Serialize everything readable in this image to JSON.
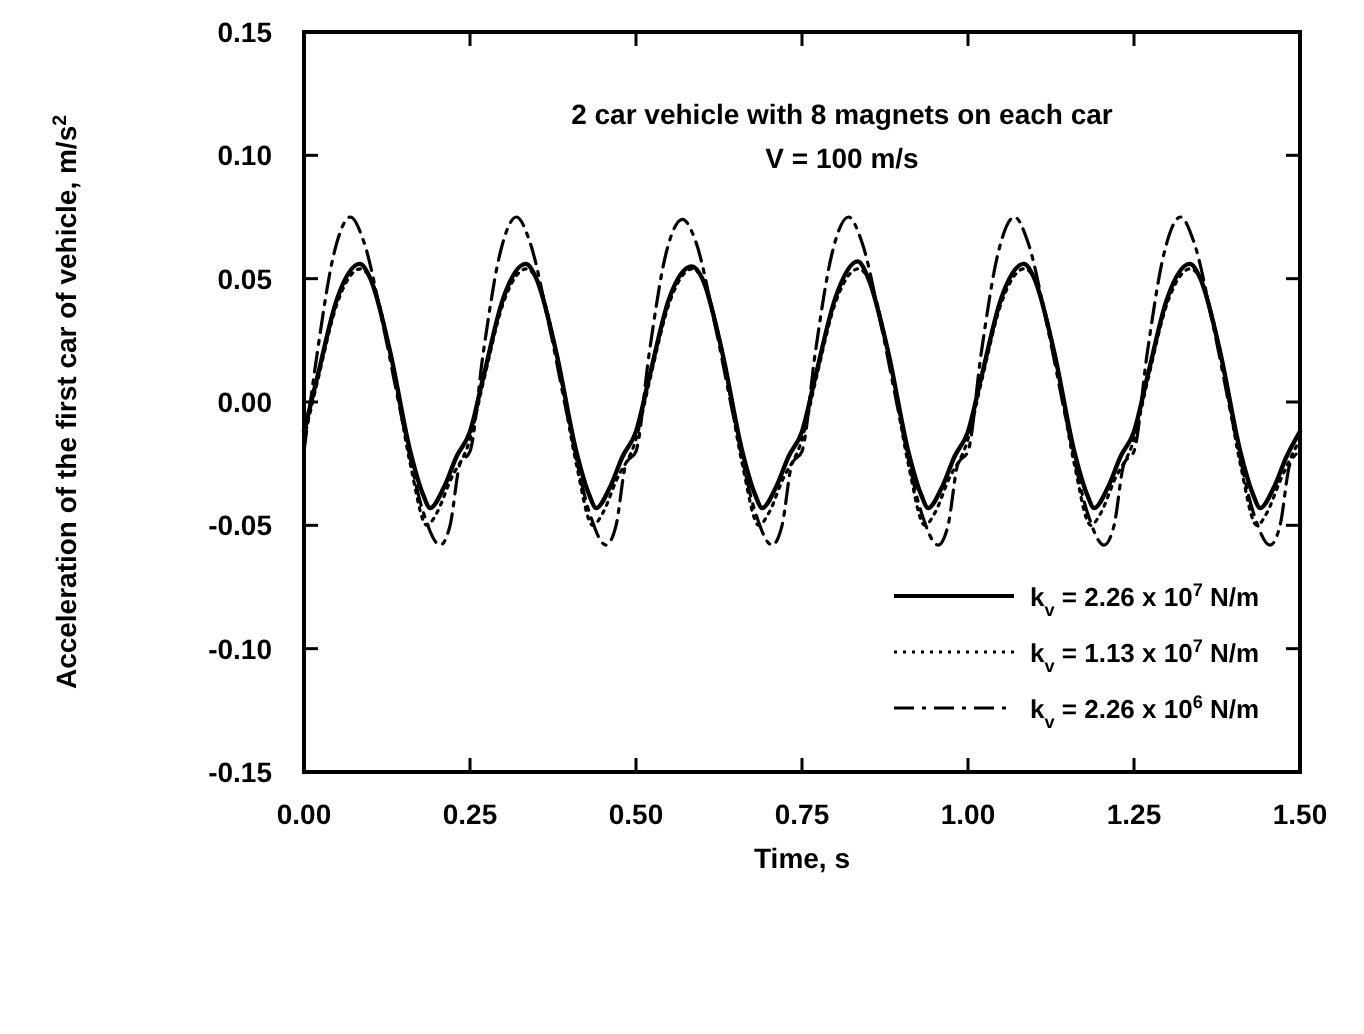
{
  "chart_data": {
    "type": "line",
    "xlabel": "Time, s",
    "ylabel": "Acceleration of the first  car of vehicle, m/s$^{2}$",
    "annotations": [
      "2 car vehicle with 8 magnets on each car",
      "V = 100 m/s"
    ],
    "xlim": [
      0,
      1.5
    ],
    "xticks": [
      {
        "value": 0,
        "label": "0.00"
      },
      {
        "value": 0.25,
        "label": "0.25"
      },
      {
        "value": 0.5,
        "label": "0.50"
      },
      {
        "value": 0.75,
        "label": "0.75"
      },
      {
        "value": 1,
        "label": "1.00"
      },
      {
        "value": 1.25,
        "label": "1.25"
      },
      {
        "value": 1.5,
        "label": "1.50"
      }
    ],
    "ylim": [
      -0.15,
      0.15
    ],
    "yticks": [
      {
        "value": -0.15,
        "label": "-0.15"
      },
      {
        "value": -0.1,
        "label": "-0.10"
      },
      {
        "value": -0.05,
        "label": "-0.05"
      },
      {
        "value": 0,
        "label": "0.00"
      },
      {
        "value": 0.05,
        "label": "0.05"
      },
      {
        "value": 0.1,
        "label": "0.10"
      },
      {
        "value": 0.15,
        "label": "0.15"
      }
    ],
    "grid": false,
    "legend": "bottom right",
    "series": [
      {
        "name": "k$_{v}$ = 2.26 x 10$^{7}$ N/m",
        "color": "#000000",
        "line_style": "solid",
        "x": [
          0,
          0.02,
          0.05,
          0.084,
          0.1,
          0.13,
          0.16,
          0.18,
          0.19,
          0.21,
          0.23,
          0.25,
          0.27,
          0.3,
          0.334,
          0.35,
          0.38,
          0.41,
          0.43,
          0.44,
          0.46,
          0.48,
          0.5,
          0.52,
          0.55,
          0.584,
          0.6,
          0.63,
          0.66,
          0.68,
          0.69,
          0.71,
          0.73,
          0.75,
          0.77,
          0.8,
          0.834,
          0.85,
          0.88,
          0.91,
          0.93,
          0.94,
          0.96,
          0.98,
          1,
          1.02,
          1.05,
          1.084,
          1.1,
          1.13,
          1.16,
          1.18,
          1.19,
          1.21,
          1.23,
          1.25,
          1.27,
          1.3,
          1.334,
          1.35,
          1.38,
          1.41,
          1.43,
          1.44,
          1.46,
          1.48,
          1.5
        ],
        "values": [
          -0.012,
          0.01,
          0.042,
          0.056,
          0.05,
          0.02,
          -0.02,
          -0.038,
          -0.043,
          -0.035,
          -0.022,
          -0.012,
          0.01,
          0.042,
          0.056,
          0.05,
          0.02,
          -0.02,
          -0.038,
          -0.043,
          -0.035,
          -0.022,
          -0.012,
          0.01,
          0.042,
          0.055,
          0.05,
          0.02,
          -0.02,
          -0.038,
          -0.043,
          -0.035,
          -0.022,
          -0.012,
          0.01,
          0.042,
          0.057,
          0.05,
          0.02,
          -0.02,
          -0.038,
          -0.043,
          -0.035,
          -0.022,
          -0.012,
          0.01,
          0.042,
          0.056,
          0.05,
          0.02,
          -0.02,
          -0.038,
          -0.043,
          -0.035,
          -0.022,
          -0.012,
          0.01,
          0.042,
          0.056,
          0.05,
          0.02,
          -0.02,
          -0.038,
          -0.043,
          -0.035,
          -0.022,
          -0.012
        ]
      },
      {
        "name": "k$_{v}$ = 1.13 x 10$^{7}$ N/m",
        "color": "#000000",
        "line_style": "dotted",
        "x": [
          0,
          0.02,
          0.05,
          0.085,
          0.1,
          0.13,
          0.16,
          0.185,
          0.2,
          0.22,
          0.25,
          0.27,
          0.3,
          0.335,
          0.35,
          0.38,
          0.41,
          0.435,
          0.45,
          0.47,
          0.5,
          0.52,
          0.55,
          0.585,
          0.6,
          0.63,
          0.66,
          0.685,
          0.7,
          0.72,
          0.75,
          0.77,
          0.8,
          0.835,
          0.85,
          0.88,
          0.91,
          0.935,
          0.95,
          0.97,
          1,
          1.02,
          1.05,
          1.085,
          1.1,
          1.13,
          1.16,
          1.185,
          1.2,
          1.22,
          1.25,
          1.27,
          1.3,
          1.335,
          1.35,
          1.38,
          1.41,
          1.435,
          1.45,
          1.47,
          1.5
        ],
        "values": [
          -0.015,
          0.008,
          0.04,
          0.054,
          0.05,
          0.02,
          -0.025,
          -0.05,
          -0.045,
          -0.032,
          -0.015,
          0.008,
          0.04,
          0.054,
          0.05,
          0.02,
          -0.025,
          -0.05,
          -0.045,
          -0.032,
          -0.015,
          0.008,
          0.04,
          0.054,
          0.05,
          0.02,
          -0.025,
          -0.05,
          -0.045,
          -0.032,
          -0.015,
          0.008,
          0.04,
          0.054,
          0.05,
          0.02,
          -0.025,
          -0.05,
          -0.045,
          -0.032,
          -0.015,
          0.008,
          0.04,
          0.054,
          0.05,
          0.02,
          -0.025,
          -0.05,
          -0.045,
          -0.032,
          -0.015,
          0.008,
          0.04,
          0.054,
          0.05,
          0.02,
          -0.025,
          -0.05,
          -0.045,
          -0.032,
          -0.015
        ]
      },
      {
        "name": "k$_{v}$ = 2.26 x 10$^{6}$ N/m",
        "color": "#000000",
        "line_style": "dashdot",
        "x": [
          0,
          0.02,
          0.045,
          0.07,
          0.09,
          0.12,
          0.15,
          0.18,
          0.205,
          0.22,
          0.235,
          0.25,
          0.27,
          0.295,
          0.32,
          0.34,
          0.37,
          0.4,
          0.43,
          0.455,
          0.47,
          0.485,
          0.5,
          0.52,
          0.545,
          0.57,
          0.59,
          0.62,
          0.65,
          0.68,
          0.705,
          0.72,
          0.735,
          0.75,
          0.77,
          0.795,
          0.82,
          0.84,
          0.87,
          0.9,
          0.93,
          0.955,
          0.97,
          0.985,
          1,
          1.02,
          1.045,
          1.07,
          1.09,
          1.12,
          1.15,
          1.18,
          1.205,
          1.22,
          1.235,
          1.25,
          1.27,
          1.295,
          1.32,
          1.34,
          1.37,
          1.4,
          1.43,
          1.455,
          1.47,
          1.485,
          1.5
        ],
        "values": [
          -0.02,
          0.02,
          0.06,
          0.075,
          0.065,
          0.03,
          -0.01,
          -0.045,
          -0.058,
          -0.05,
          -0.025,
          -0.02,
          0.02,
          0.06,
          0.075,
          0.065,
          0.03,
          -0.01,
          -0.045,
          -0.058,
          -0.05,
          -0.025,
          -0.02,
          0.02,
          0.06,
          0.074,
          0.065,
          0.03,
          -0.01,
          -0.045,
          -0.058,
          -0.05,
          -0.025,
          -0.02,
          0.02,
          0.06,
          0.075,
          0.065,
          0.03,
          -0.01,
          -0.045,
          -0.058,
          -0.05,
          -0.025,
          -0.02,
          0.02,
          0.06,
          0.075,
          0.065,
          0.03,
          -0.01,
          -0.045,
          -0.058,
          -0.05,
          -0.025,
          -0.02,
          0.02,
          0.06,
          0.075,
          0.065,
          0.03,
          -0.01,
          -0.045,
          -0.058,
          -0.05,
          -0.025,
          -0.02
        ]
      }
    ]
  }
}
